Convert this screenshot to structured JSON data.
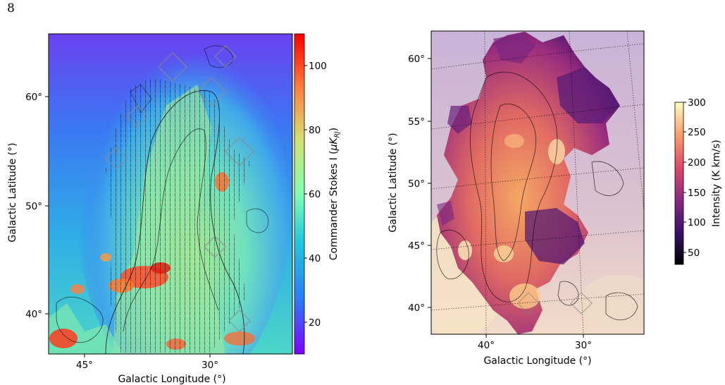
{
  "page": {
    "number": "8"
  },
  "panel_left": {
    "xlabel": "Galactic Longitude (°)",
    "ylabel": "Galactic Latitude (°)",
    "x_ticks": [
      "45°",
      "30°"
    ],
    "y_ticks": [
      "60°",
      "50°",
      "40°"
    ],
    "colorbar": {
      "label": "Commander Stokes I (μK_RJ)",
      "label_main": "Commander Stokes I (",
      "label_unit": "μK",
      "label_sub": "RJ",
      "label_close": ")",
      "ticks": [
        "100",
        "80",
        "60",
        "40",
        "20"
      ],
      "range": [
        10,
        110
      ],
      "colormap": "rainbow"
    }
  },
  "panel_right": {
    "xlabel": "Galactic Longitude (°)",
    "ylabel": "Galactic Latitude (°)",
    "x_ticks": [
      "40°",
      "30°"
    ],
    "y_ticks": [
      "60°",
      "55°",
      "50°",
      "45°",
      "40°"
    ],
    "colorbar": {
      "label": "Intensity (K km/s)",
      "ticks": [
        "300",
        "250",
        "200",
        "150",
        "100",
        "50"
      ],
      "range": [
        30,
        300
      ],
      "colormap": "magma"
    }
  },
  "colors": {
    "rainbow": [
      "#8000ff",
      "#2a7cf6",
      "#20c8e0",
      "#80ffb4",
      "#d4e070",
      "#ff8040",
      "#ff0000"
    ],
    "magma": [
      "#000004",
      "#3b0f70",
      "#8c2981",
      "#de4968",
      "#fe9f6d",
      "#fcfdbf"
    ]
  }
}
